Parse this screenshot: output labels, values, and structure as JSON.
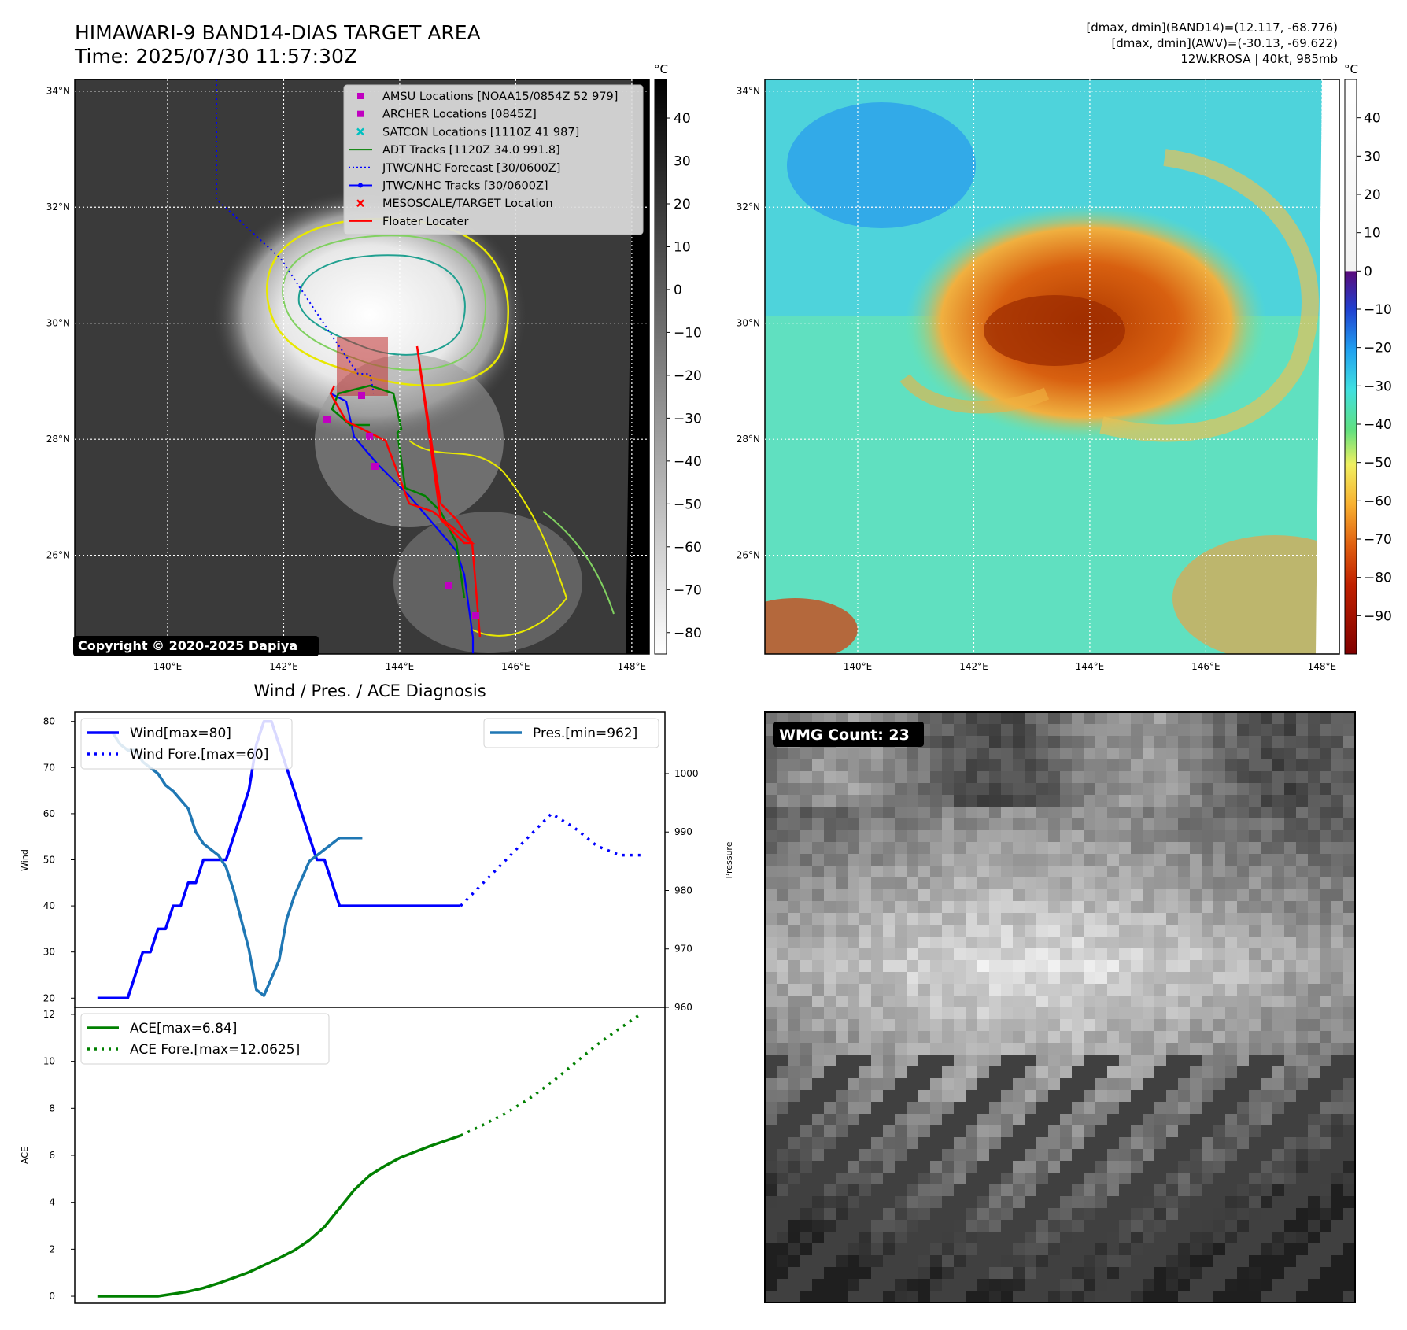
{
  "header": {
    "title": "HIMAWARI-9 BAND14-DIAS TARGET AREA",
    "time": "Time: 2025/07/30 11:57:30Z",
    "stats": [
      "[dmax, dmin](BAND14)=(12.117, -68.776)",
      "[dmax, dmin](AWV)=(-30.13, -69.622)",
      "12W.KROSA | 40kt, 985mb"
    ]
  },
  "ir_panel": {
    "lat_labels": [
      "34°N",
      "32°N",
      "30°N",
      "28°N",
      "26°N"
    ],
    "lat_values": [
      34,
      32,
      30,
      28,
      26
    ],
    "lon_labels": [
      "140°E",
      "142°E",
      "144°E",
      "146°E",
      "148°E"
    ],
    "lon_values": [
      140,
      142,
      144,
      146,
      148
    ],
    "lon_range": [
      138.4,
      148.3
    ],
    "lat_range": [
      24.3,
      34.2
    ],
    "legend": [
      {
        "label": "AMSU Locations [NOAA15/0854Z 52 979]",
        "kind": "square",
        "color": "#c000c0"
      },
      {
        "label": "ARCHER Locations [0845Z]",
        "kind": "square",
        "color": "#c000c0"
      },
      {
        "label": "SATCON Locations [1110Z 41 987]",
        "kind": "x",
        "color": "#00c0c0"
      },
      {
        "label": "ADT Tracks [1120Z 34.0 991.8]",
        "kind": "line",
        "color": "#007f00"
      },
      {
        "label": "JTWC/NHC Forecast [30/0600Z]",
        "kind": "dotted",
        "color": "#0000ff"
      },
      {
        "label": "JTWC/NHC Tracks [30/0600Z]",
        "kind": "line-dot",
        "color": "#0000ff"
      },
      {
        "label": "MESOSCALE/TARGET Location",
        "kind": "x",
        "color": "#ff0000"
      },
      {
        "label": "Floater Locater",
        "kind": "line",
        "color": "#ff0000"
      }
    ],
    "copyright": "Copyright © 2020-2025 Dapiya",
    "colorbar_unit": "°C",
    "colorbar_ticks": [
      "40",
      "30",
      "20",
      "10",
      "0",
      "−10",
      "−20",
      "−30",
      "−40",
      "−50",
      "−60",
      "−70",
      "−80"
    ],
    "colorbar_values": [
      40,
      30,
      20,
      10,
      0,
      -10,
      -20,
      -30,
      -40,
      -50,
      -60,
      -70,
      -80
    ],
    "colorbar_range": [
      -85,
      49
    ]
  },
  "wv_panel": {
    "lat_labels": [
      "34°N",
      "32°N",
      "30°N",
      "28°N",
      "26°N"
    ],
    "lon_labels": [
      "140°E",
      "142°E",
      "144°E",
      "146°E",
      "148°E"
    ],
    "colorbar_unit": "°C",
    "colorbar_ticks": [
      "40",
      "30",
      "20",
      "10",
      "0",
      "−10",
      "−20",
      "−30",
      "−40",
      "−50",
      "−60",
      "−70",
      "−80",
      "−90"
    ],
    "colorbar_values": [
      40,
      30,
      20,
      10,
      0,
      -10,
      -20,
      -30,
      -40,
      -50,
      -60,
      -70,
      -80,
      -90
    ],
    "colorbar_range": [
      -100,
      50
    ]
  },
  "chart_data": [
    {
      "type": "line",
      "title": "Wind / Pres. / ACE Diagnosis",
      "ylabel": "Wind",
      "y2label": "Pressure",
      "ylim": [
        18,
        82
      ],
      "y2lim": [
        960,
        1010.5
      ],
      "yticks": [
        20,
        30,
        40,
        50,
        60,
        70,
        80
      ],
      "y2ticks": [
        960,
        970,
        980,
        990,
        1000
      ],
      "xlim": [
        -3,
        75
      ],
      "series": [
        {
          "name": "Wind[max=80]",
          "axis": "y",
          "style": "solid",
          "color": "#0000ff",
          "x": [
            0,
            1,
            2,
            3,
            4,
            5,
            6,
            7,
            8,
            9,
            10,
            11,
            12,
            13,
            14,
            15,
            16,
            17,
            18,
            19,
            20,
            21,
            22,
            23,
            24,
            25,
            26,
            27,
            28,
            29,
            30,
            31,
            32,
            33,
            34,
            35,
            36,
            37,
            38,
            39,
            40,
            41,
            42,
            43,
            44,
            45,
            46,
            47,
            48
          ],
          "y": [
            20,
            20,
            20,
            20,
            20,
            25,
            30,
            30,
            35,
            35,
            40,
            40,
            45,
            45,
            50,
            50,
            50,
            50,
            55,
            60,
            65,
            75,
            80,
            80,
            75,
            70,
            65,
            60,
            55,
            50,
            50,
            45,
            40,
            40,
            40,
            40,
            40,
            40,
            40,
            40,
            40,
            40,
            40,
            40,
            40,
            40,
            40,
            40,
            40
          ]
        },
        {
          "name": "Wind Fore.[max=60]",
          "axis": "y",
          "style": "dotted",
          "color": "#0000ff",
          "x": [
            48,
            51,
            54,
            57,
            60,
            63,
            66,
            69,
            72
          ],
          "y": [
            40,
            45,
            50,
            55,
            60,
            57,
            53,
            51,
            51
          ]
        },
        {
          "name": "Pres.[min=962]",
          "axis": "y2",
          "style": "solid",
          "color": "#1f77b4",
          "x": [
            0,
            2,
            3,
            4,
            5,
            6,
            8,
            9,
            10,
            12,
            13,
            14,
            15,
            16,
            17,
            18,
            19,
            20,
            21,
            22,
            24,
            25,
            26,
            27,
            28,
            29,
            30,
            31,
            32,
            33,
            34,
            35
          ],
          "y": [
            1007,
            1007,
            1005,
            1004,
            1004,
            1002,
            1000,
            998,
            997,
            994,
            990,
            988,
            987,
            986,
            984,
            980,
            975,
            970,
            963,
            962,
            968,
            975,
            979,
            982,
            985,
            986,
            987,
            988,
            989,
            989,
            989,
            989
          ]
        }
      ]
    },
    {
      "type": "line",
      "ylabel": "ACE",
      "ylim": [
        -0.3,
        12.3
      ],
      "yticks": [
        0,
        2,
        4,
        6,
        8,
        10,
        12
      ],
      "xlim": [
        -3,
        75
      ],
      "series": [
        {
          "name": "ACE[max=6.84]",
          "style": "solid",
          "color": "#008000",
          "x": [
            0,
            2,
            4,
            6,
            8,
            10,
            12,
            14,
            16,
            18,
            20,
            22,
            24,
            26,
            28,
            30,
            32,
            34,
            36,
            38,
            40,
            42,
            44,
            46,
            48
          ],
          "y": [
            0,
            0,
            0,
            0,
            0,
            0.1,
            0.2,
            0.35,
            0.55,
            0.78,
            1.02,
            1.32,
            1.62,
            1.95,
            2.38,
            2.95,
            3.75,
            4.55,
            5.15,
            5.55,
            5.9,
            6.15,
            6.4,
            6.62,
            6.84
          ]
        },
        {
          "name": "ACE Fore.[max=12.0625]",
          "style": "dotted",
          "color": "#008000",
          "x": [
            48,
            51,
            54,
            57,
            60,
            63,
            66,
            69,
            72
          ],
          "y": [
            6.84,
            7.3,
            7.8,
            8.4,
            9.1,
            9.9,
            10.7,
            11.4,
            12.0625
          ]
        }
      ]
    }
  ],
  "wmg_panel": {
    "label": "WMG Count: 23"
  }
}
